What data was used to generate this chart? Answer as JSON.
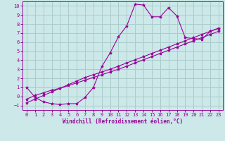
{
  "xlabel": "Windchill (Refroidissement éolien,°C)",
  "bg_color": "#cce8e8",
  "grid_color": "#aacccc",
  "line_color": "#990099",
  "xlim": [
    -0.5,
    23.5
  ],
  "ylim": [
    -1.5,
    10.5
  ],
  "xticks": [
    0,
    1,
    2,
    3,
    4,
    5,
    6,
    7,
    8,
    9,
    10,
    11,
    12,
    13,
    14,
    15,
    16,
    17,
    18,
    19,
    20,
    21,
    22,
    23
  ],
  "yticks": [
    -1,
    0,
    1,
    2,
    3,
    4,
    5,
    6,
    7,
    8,
    9,
    10
  ],
  "curve1_x": [
    0,
    1,
    2,
    3,
    4,
    5,
    6,
    7,
    8,
    9,
    10,
    11,
    12,
    13,
    14,
    15,
    16,
    17,
    18,
    19,
    20,
    21,
    22,
    23
  ],
  "curve1_y": [
    1.0,
    -0.1,
    -0.6,
    -0.8,
    -0.9,
    -0.8,
    -0.8,
    -0.1,
    1.0,
    3.3,
    4.8,
    6.6,
    7.8,
    10.2,
    10.1,
    8.8,
    8.8,
    9.8,
    8.9,
    6.5,
    6.4,
    6.3,
    7.2,
    7.5
  ],
  "curve2_x": [
    0,
    1,
    2,
    3,
    4,
    5,
    6,
    7,
    8,
    9,
    10,
    11,
    12,
    13,
    14,
    15,
    16,
    17,
    18,
    19,
    20,
    21,
    22,
    23
  ],
  "curve2_y": [
    -0.3,
    0.1,
    0.4,
    0.7,
    0.9,
    1.2,
    1.5,
    1.8,
    2.1,
    2.4,
    2.7,
    3.0,
    3.35,
    3.7,
    4.05,
    4.4,
    4.75,
    5.1,
    5.45,
    5.8,
    6.15,
    6.5,
    6.85,
    7.2
  ],
  "curve3_x": [
    0,
    1,
    2,
    3,
    4,
    5,
    6,
    7,
    8,
    9,
    10,
    11,
    12,
    13,
    14,
    15,
    16,
    17,
    18,
    19,
    20,
    21,
    22,
    23
  ],
  "curve3_y": [
    -0.7,
    -0.3,
    0.1,
    0.5,
    0.9,
    1.3,
    1.7,
    2.1,
    2.4,
    2.7,
    3.0,
    3.35,
    3.7,
    4.05,
    4.4,
    4.75,
    5.1,
    5.45,
    5.8,
    6.15,
    6.5,
    6.85,
    7.2,
    7.55
  ]
}
